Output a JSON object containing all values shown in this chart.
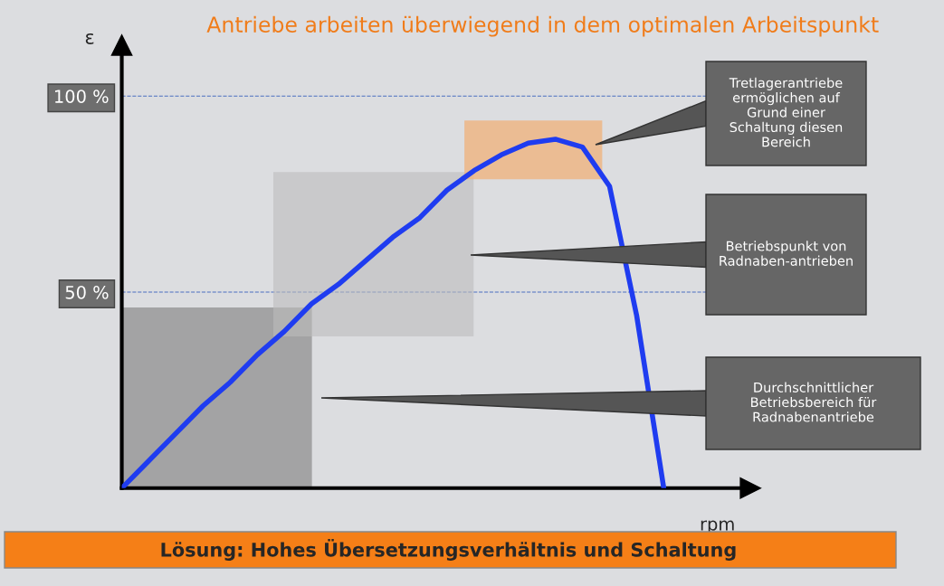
{
  "chart_data": {
    "type": "line",
    "title": "Antriebe arbeiten überwiegend in dem optimalen Arbeitspunkt",
    "xlabel": "rpm",
    "ylabel": "ε",
    "categories": [
      null,
      null,
      null,
      null,
      null,
      null,
      null,
      null,
      null,
      null,
      null,
      null,
      null,
      null,
      null,
      null,
      null,
      null,
      null,
      null,
      null
    ],
    "series": [
      {
        "color": "#1f3cf0",
        "values": [
          0,
          7,
          14,
          21,
          27,
          34,
          40,
          47,
          52,
          58,
          64,
          69,
          76,
          81,
          85,
          88,
          89,
          87,
          77,
          44,
          0
        ]
      }
    ],
    "ylim": [
      0,
      113
    ],
    "yticks": [
      {
        "value": 50,
        "label": "50 %"
      },
      {
        "value": 100,
        "label": "100 %"
      }
    ],
    "grid": "y",
    "marker": "none",
    "line_style": "solid",
    "annotations": [
      "Tretlagerantriebe ermöglichen auf Grund einer Schaltung diesen Bereich",
      "Betriebspunkt von Radnaben-antrieben",
      "Durchschnittlicher Betriebsbereich für Radnabenantriebe",
      "Lösung: Hohes Übersetzungsverhältnis und Schaltung"
    ]
  }
}
